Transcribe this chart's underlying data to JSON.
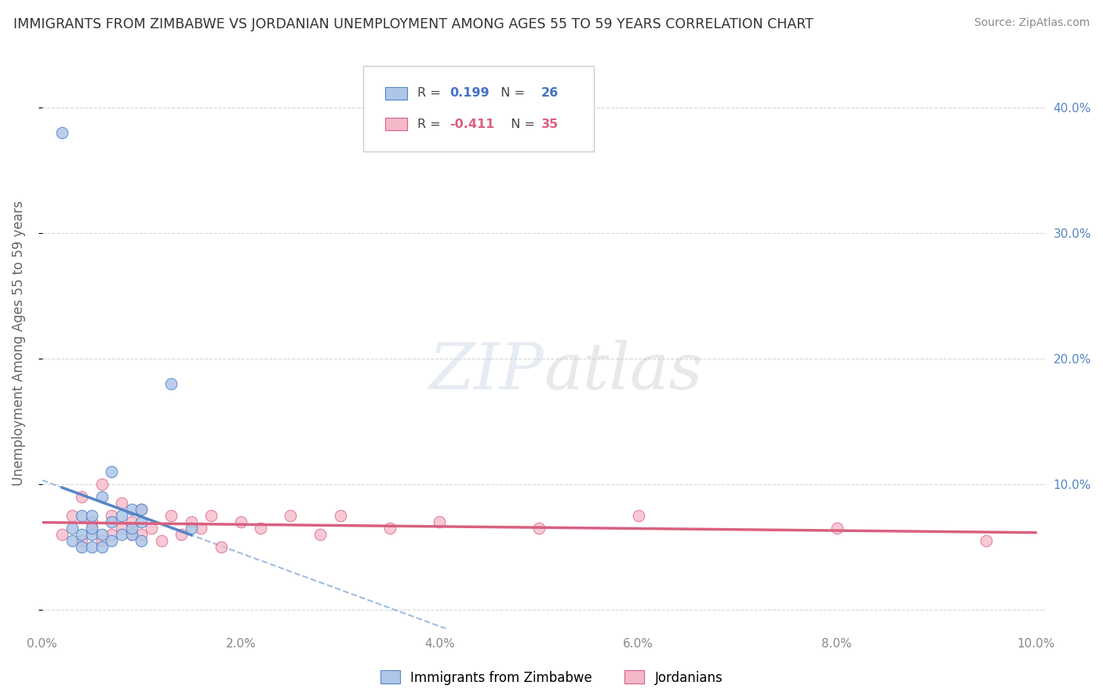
{
  "title": "IMMIGRANTS FROM ZIMBABWE VS JORDANIAN UNEMPLOYMENT AMONG AGES 55 TO 59 YEARS CORRELATION CHART",
  "source": "Source: ZipAtlas.com",
  "ylabel": "Unemployment Among Ages 55 to 59 years",
  "x_min": 0.0,
  "x_max": 0.1,
  "y_min": -0.015,
  "y_max": 0.44,
  "y_ticks": [
    0.0,
    0.1,
    0.2,
    0.3,
    0.4
  ],
  "y_tick_labels": [
    "",
    "10.0%",
    "20.0%",
    "30.0%",
    "40.0%"
  ],
  "x_ticks": [
    0.0,
    0.02,
    0.04,
    0.06,
    0.08,
    0.1
  ],
  "x_tick_labels": [
    "0.0%",
    "2.0%",
    "4.0%",
    "6.0%",
    "8.0%",
    "10.0%"
  ],
  "legend_R1": "0.199",
  "legend_N1": "26",
  "legend_R2": "-0.411",
  "legend_N2": "35",
  "legend_label1": "Immigrants from Zimbabwe",
  "legend_label2": "Jordanians",
  "blue_color": "#aec6e8",
  "blue_edge_color": "#5585c5",
  "pink_color": "#f5b8c8",
  "pink_edge_color": "#d96080",
  "blue_scatter_x": [
    0.002,
    0.003,
    0.003,
    0.004,
    0.004,
    0.004,
    0.005,
    0.005,
    0.005,
    0.005,
    0.006,
    0.006,
    0.006,
    0.007,
    0.007,
    0.007,
    0.008,
    0.008,
    0.009,
    0.009,
    0.009,
    0.01,
    0.01,
    0.01,
    0.013,
    0.015
  ],
  "blue_scatter_y": [
    0.38,
    0.055,
    0.065,
    0.05,
    0.06,
    0.075,
    0.05,
    0.06,
    0.065,
    0.075,
    0.05,
    0.06,
    0.09,
    0.055,
    0.07,
    0.11,
    0.06,
    0.075,
    0.06,
    0.065,
    0.08,
    0.055,
    0.07,
    0.08,
    0.18,
    0.065
  ],
  "pink_scatter_x": [
    0.002,
    0.003,
    0.004,
    0.004,
    0.005,
    0.005,
    0.006,
    0.006,
    0.007,
    0.007,
    0.008,
    0.008,
    0.009,
    0.009,
    0.01,
    0.01,
    0.011,
    0.012,
    0.013,
    0.014,
    0.015,
    0.016,
    0.017,
    0.018,
    0.02,
    0.022,
    0.025,
    0.028,
    0.03,
    0.035,
    0.04,
    0.05,
    0.06,
    0.08,
    0.095
  ],
  "pink_scatter_y": [
    0.06,
    0.075,
    0.055,
    0.09,
    0.065,
    0.07,
    0.055,
    0.1,
    0.06,
    0.075,
    0.065,
    0.085,
    0.06,
    0.07,
    0.06,
    0.08,
    0.065,
    0.055,
    0.075,
    0.06,
    0.07,
    0.065,
    0.075,
    0.05,
    0.07,
    0.065,
    0.075,
    0.06,
    0.075,
    0.065,
    0.07,
    0.065,
    0.075,
    0.065,
    0.055
  ],
  "watermark_zip": "ZIP",
  "watermark_atlas": "atlas",
  "bg_color": "#ffffff",
  "grid_color": "#cccccc",
  "title_color": "#333333",
  "source_color": "#888888",
  "axis_label_color": "#666666",
  "tick_color": "#888888",
  "right_tick_color": "#5585c5"
}
